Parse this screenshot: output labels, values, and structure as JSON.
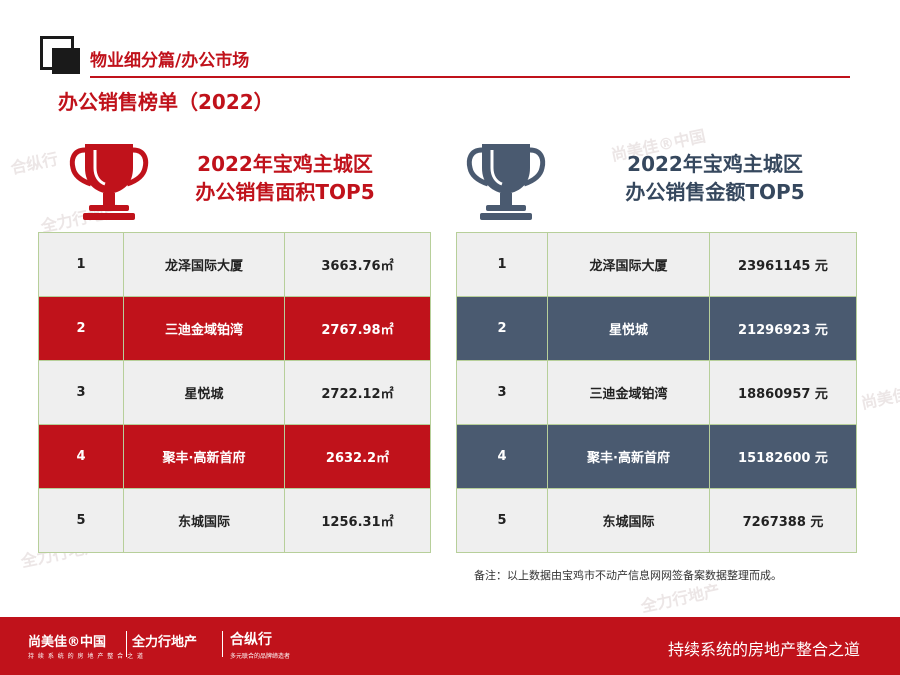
{
  "header": {
    "section_title": "物业细分篇/办公市场",
    "subtitle": "办公销售榜单（2022）"
  },
  "left_block": {
    "title_line1": "2022年宝鸡主城区",
    "title_line2": "办公销售面积TOP5",
    "icon": "trophy-icon",
    "accent_color": "#c0121b",
    "rows": [
      {
        "rank": "1",
        "name": "龙泽国际大厦",
        "value": "3663.76㎡"
      },
      {
        "rank": "2",
        "name": "三迪金域铂湾",
        "value": "2767.98㎡"
      },
      {
        "rank": "3",
        "name": "星悦城",
        "value": "2722.12㎡"
      },
      {
        "rank": "4",
        "name": "聚丰·高新首府",
        "value": "2632.2㎡"
      },
      {
        "rank": "5",
        "name": "东城国际",
        "value": "1256.31㎡"
      }
    ]
  },
  "right_block": {
    "title_line1": "2022年宝鸡主城区",
    "title_line2": "办公销售金额TOP5",
    "icon": "trophy-icon",
    "accent_color": "#4a5a70",
    "rows": [
      {
        "rank": "1",
        "name": "龙泽国际大厦",
        "value": "23961145 元"
      },
      {
        "rank": "2",
        "name": "星悦城",
        "value": "21296923 元"
      },
      {
        "rank": "3",
        "name": "三迪金域铂湾",
        "value": "18860957 元"
      },
      {
        "rank": "4",
        "name": "聚丰·高新首府",
        "value": "15182600 元"
      },
      {
        "rank": "5",
        "name": "东城国际",
        "value": "7267388 元"
      }
    ]
  },
  "note": "备注：以上数据由宝鸡市不动产信息网网签备案数据整理而成。",
  "footer": {
    "brand1": "尚美佳®中国",
    "brand2": "全力行地产",
    "brand_small": "持 续 系 统 的 房 地 产 整 合 之 道",
    "brand3": "合纵行",
    "brand3_sub": "多元联合的品牌缔造者",
    "slogan": "持续系统的房地产整合之道"
  },
  "watermark": {
    "text1": "尚美佳®中国",
    "text2": "全力行地产",
    "text3": "合纵行"
  }
}
